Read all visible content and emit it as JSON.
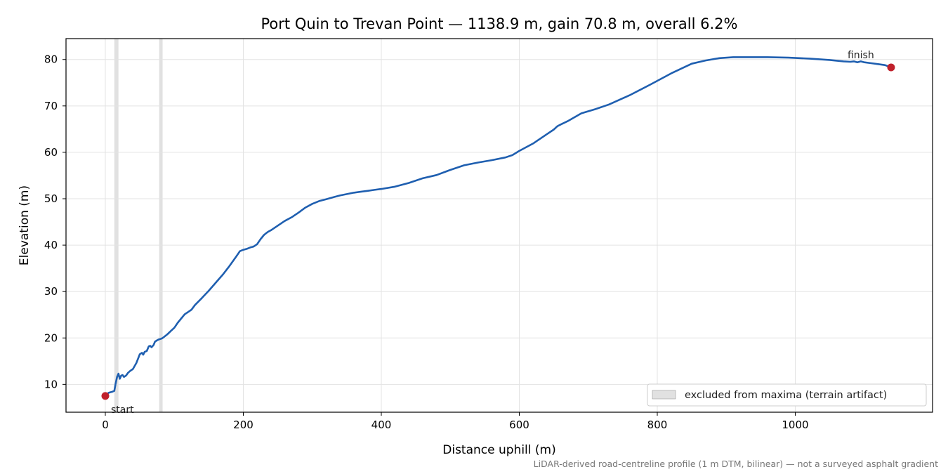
{
  "chart_data": {
    "type": "line",
    "title": "Port Quin to Trevan Point — 1138.9 m, gain 70.8 m, overall 6.2%",
    "xlabel": "Distance uphill (m)",
    "ylabel": "Elevation (m)",
    "xlim": [
      -57,
      1199
    ],
    "ylim": [
      4,
      84.5
    ],
    "xticks": [
      0,
      200,
      400,
      600,
      800,
      1000
    ],
    "yticks": [
      10,
      20,
      30,
      40,
      50,
      60,
      70,
      80
    ],
    "grid": true,
    "legend_position": "lower-right",
    "legend_label": "excluded from maxima (terrain artifact)",
    "excluded_bands": [
      [
        13,
        19
      ],
      [
        78,
        83
      ]
    ],
    "series": [
      {
        "color": "#1f5fb0",
        "x": [
          0,
          5,
          10,
          13,
          15,
          17,
          19,
          21,
          23,
          25,
          27,
          30,
          33,
          36,
          40,
          45,
          50,
          53,
          55,
          57,
          60,
          63,
          65,
          67,
          70,
          72,
          75,
          78,
          80,
          82,
          85,
          90,
          95,
          100,
          105,
          110,
          115,
          120,
          125,
          130,
          140,
          150,
          160,
          170,
          180,
          190,
          195,
          200,
          205,
          210,
          215,
          220,
          225,
          230,
          235,
          240,
          250,
          260,
          270,
          280,
          290,
          300,
          310,
          320,
          330,
          340,
          350,
          360,
          370,
          380,
          390,
          400,
          420,
          440,
          460,
          480,
          500,
          520,
          540,
          560,
          580,
          590,
          600,
          620,
          640,
          650,
          655,
          660,
          670,
          690,
          710,
          730,
          760,
          790,
          820,
          850,
          870,
          890,
          910,
          930,
          960,
          990,
          1020,
          1050,
          1070,
          1080,
          1085,
          1090,
          1095,
          1100,
          1110,
          1120,
          1130,
          1138.9
        ],
        "y": [
          7.5,
          8.2,
          8.4,
          8.6,
          10.2,
          11.6,
          12.3,
          11.2,
          11.9,
          12.0,
          11.6,
          11.9,
          12.5,
          12.9,
          13.3,
          14.6,
          16.5,
          16.8,
          16.4,
          17.0,
          17.2,
          18.2,
          18.3,
          18.0,
          18.5,
          19.2,
          19.5,
          19.7,
          19.8,
          19.9,
          20.2,
          20.8,
          21.5,
          22.2,
          23.3,
          24.2,
          25.1,
          25.6,
          26.1,
          27.1,
          28.6,
          30.2,
          31.9,
          33.6,
          35.5,
          37.6,
          38.7,
          39.0,
          39.2,
          39.5,
          39.7,
          40.2,
          41.3,
          42.2,
          42.8,
          43.2,
          44.2,
          45.2,
          46.0,
          47.0,
          48.1,
          48.9,
          49.5,
          49.9,
          50.3,
          50.7,
          51.0,
          51.3,
          51.5,
          51.7,
          51.9,
          52.1,
          52.6,
          53.4,
          54.4,
          55.1,
          56.2,
          57.2,
          57.8,
          58.3,
          58.9,
          59.4,
          60.3,
          61.9,
          63.9,
          64.9,
          65.6,
          66.0,
          66.7,
          68.4,
          69.3,
          70.3,
          72.3,
          74.6,
          77.0,
          79.1,
          79.8,
          80.3,
          80.5,
          80.5,
          80.5,
          80.4,
          80.2,
          79.9,
          79.6,
          79.5,
          79.6,
          79.4,
          79.6,
          79.4,
          79.2,
          79.0,
          78.8,
          78.3
        ]
      }
    ],
    "markers": [
      {
        "x": 0,
        "y": 7.5,
        "label": "start",
        "color": "#c0202b"
      },
      {
        "x": 1138.9,
        "y": 78.3,
        "label": "finish",
        "color": "#c0202b"
      }
    ],
    "footnote": "LiDAR-derived road-centreline profile (1 m DTM, bilinear) — not a surveyed asphalt gradient"
  }
}
